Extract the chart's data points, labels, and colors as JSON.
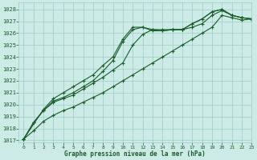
{
  "bg_color": "#cceae6",
  "grid_color": "#99ccc6",
  "line_color": "#1a5c2a",
  "title": "Graphe pression niveau de la mer (hPa)",
  "xlim": [
    -0.5,
    23
  ],
  "ylim": [
    1016.8,
    1028.6
  ],
  "xticks": [
    0,
    1,
    2,
    3,
    4,
    5,
    6,
    7,
    8,
    9,
    10,
    11,
    12,
    13,
    14,
    15,
    16,
    17,
    18,
    19,
    20,
    21,
    22,
    23
  ],
  "yticks": [
    1017,
    1018,
    1019,
    1020,
    1021,
    1022,
    1023,
    1024,
    1025,
    1026,
    1027,
    1028
  ],
  "series1_x": [
    0,
    1,
    2,
    3,
    4,
    5,
    6,
    7,
    8,
    9,
    10,
    11,
    12,
    13,
    14,
    15,
    16,
    17,
    18,
    19,
    20,
    21,
    22,
    23
  ],
  "series1_y": [
    1017.1,
    1017.8,
    1018.6,
    1019.1,
    1019.5,
    1019.8,
    1020.2,
    1020.6,
    1021.0,
    1021.5,
    1022.0,
    1022.5,
    1023.0,
    1023.5,
    1024.0,
    1024.5,
    1025.0,
    1025.5,
    1026.0,
    1026.5,
    1027.5,
    1027.3,
    1027.1,
    1027.2
  ],
  "series2_x": [
    0,
    1,
    2,
    3,
    4,
    5,
    6,
    7,
    8,
    9,
    10,
    11,
    12,
    13,
    14,
    15,
    16,
    17,
    18,
    19,
    20,
    21,
    22,
    23
  ],
  "series2_y": [
    1017.1,
    1018.5,
    1019.5,
    1020.2,
    1020.5,
    1020.8,
    1021.3,
    1021.8,
    1022.3,
    1022.9,
    1023.5,
    1025.0,
    1025.9,
    1026.3,
    1026.3,
    1026.3,
    1026.3,
    1026.5,
    1026.8,
    1027.5,
    1027.9,
    1027.5,
    1027.3,
    1027.2
  ],
  "series3_x": [
    0,
    1,
    2,
    3,
    4,
    5,
    6,
    7,
    8,
    9,
    10,
    11,
    12,
    13,
    14,
    15,
    16,
    17,
    18,
    19,
    20,
    21,
    22,
    23
  ],
  "series3_y": [
    1017.1,
    1018.5,
    1019.5,
    1020.3,
    1020.6,
    1021.0,
    1021.5,
    1022.0,
    1022.8,
    1023.7,
    1025.3,
    1026.3,
    1026.5,
    1026.3,
    1026.2,
    1026.3,
    1026.3,
    1026.8,
    1027.2,
    1027.8,
    1028.0,
    1027.5,
    1027.3,
    1027.2
  ],
  "series4_x": [
    0,
    2,
    3,
    4,
    5,
    6,
    7,
    8,
    9,
    10,
    11,
    12,
    13,
    14,
    15,
    16,
    17,
    18,
    19,
    20,
    21,
    22,
    23
  ],
  "series4_y": [
    1017.1,
    1019.6,
    1020.5,
    1021.0,
    1021.5,
    1022.0,
    1022.5,
    1023.3,
    1024.0,
    1025.5,
    1026.5,
    1026.5,
    1026.2,
    1026.2,
    1026.3,
    1026.3,
    1026.8,
    1027.2,
    1027.8,
    1028.0,
    1027.5,
    1027.3,
    1027.2
  ]
}
